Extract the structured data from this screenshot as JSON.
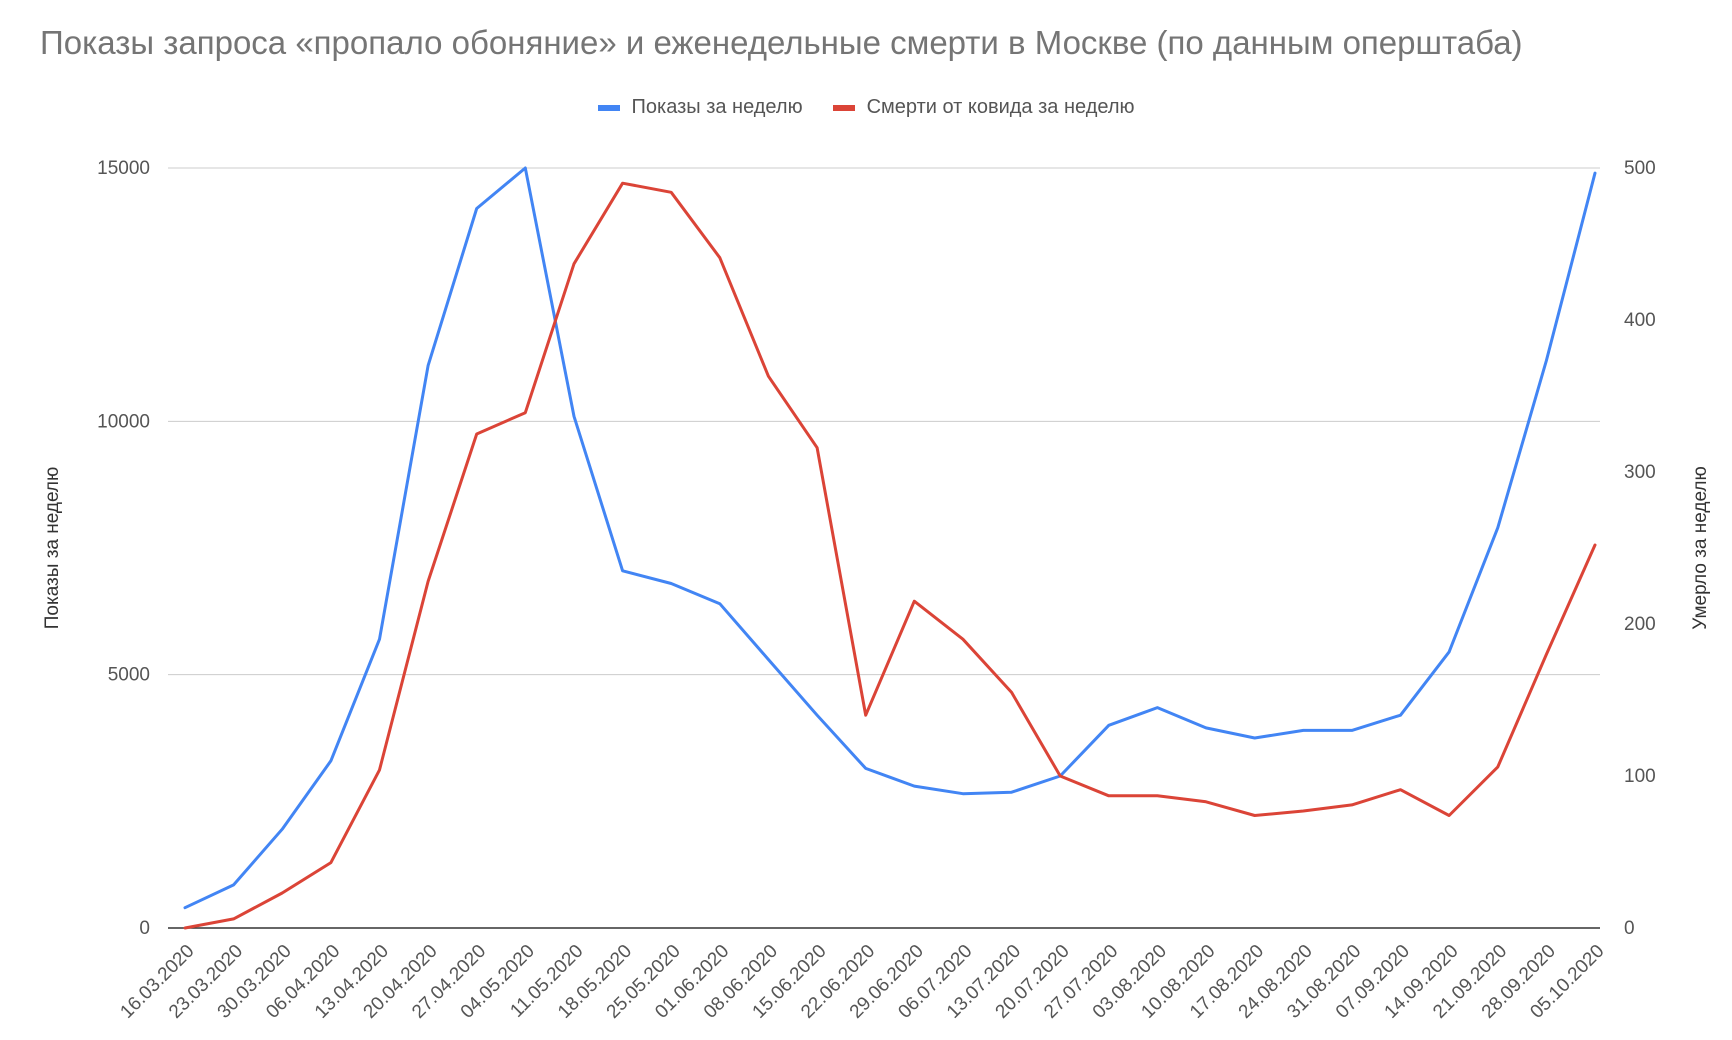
{
  "chart_data": {
    "type": "line",
    "title": "Показы запроса «пропало обоняние» и еженедельные смерти в Москве (по данным оперштаба)",
    "ylabel": "Показы за неделю",
    "y2label": "Умерло за неделю",
    "ylim": [
      0,
      15000
    ],
    "y2lim": [
      0,
      500
    ],
    "yticks": [
      "0",
      "5000",
      "10000",
      "15000"
    ],
    "y2ticks": [
      "0",
      "100",
      "200",
      "300",
      "400",
      "500"
    ],
    "grid": true,
    "legend_position": "top",
    "categories": [
      "16.03.2020",
      "23.03.2020",
      "30.03.2020",
      "06.04.2020",
      "13.04.2020",
      "20.04.2020",
      "27.04.2020",
      "04.05.2020",
      "11.05.2020",
      "18.05.2020",
      "25.05.2020",
      "01.06.2020",
      "08.06.2020",
      "15.06.2020",
      "22.06.2020",
      "29.06.2020",
      "06.07.2020",
      "13.07.2020",
      "20.07.2020",
      "27.07.2020",
      "03.08.2020",
      "10.08.2020",
      "17.08.2020",
      "24.08.2020",
      "31.08.2020",
      "07.09.2020",
      "14.09.2020",
      "21.09.2020",
      "28.09.2020",
      "05.10.2020"
    ],
    "series": [
      {
        "name": "Показы за неделю",
        "axis": "left",
        "color": "#4285f4",
        "values": [
          400,
          850,
          1950,
          3300,
          5700,
          11100,
          14200,
          15000,
          10100,
          7050,
          6800,
          6400,
          5300,
          4200,
          3150,
          2800,
          2650,
          2680,
          3000,
          4000,
          4350,
          3950,
          3750,
          3900,
          3900,
          4200,
          5450,
          7900,
          11200,
          14900
        ]
      },
      {
        "name": "Смерти от ковида за неделю",
        "axis": "right",
        "color": "#db4437",
        "values": [
          0,
          6,
          23,
          43,
          104,
          228,
          325,
          339,
          437,
          490,
          484,
          441,
          363,
          316,
          140,
          215,
          190,
          155,
          100,
          87,
          87,
          83,
          74,
          77,
          81,
          91,
          74,
          106,
          180,
          252
        ]
      }
    ]
  }
}
